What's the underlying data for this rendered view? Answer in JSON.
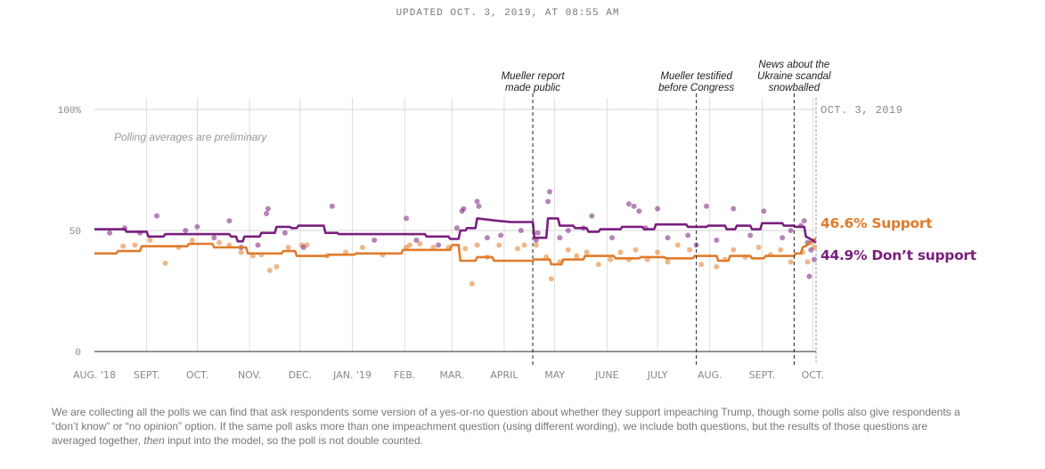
{
  "updated": "UPDATED OCT. 3, 2019, AT 08:55 AM",
  "footnote": {
    "before": "We are collecting all the polls we can find that ask respondents some version of a yes-or-no question about whether they support impeaching Trump, though some polls also give respondents a “don’t know” or “no opinion” option. If the same poll asks more than one impeachment question (using different wording), we include both questions, but the results of those questions are averaged together, ",
    "emph": "then",
    "after": " input into the model, so the poll is not double counted."
  },
  "chart_data": {
    "type": "line",
    "x_start": "2018-08-01",
    "x_end": "2019-10-03",
    "ylim": [
      0,
      100
    ],
    "y_ticks": [
      {
        "value": 0,
        "label": "0"
      },
      {
        "value": 50,
        "label": "50"
      },
      {
        "value": 100,
        "label": "100%"
      }
    ],
    "x_ticks": [
      {
        "date": "2018-08-01",
        "label": "AUG. '18"
      },
      {
        "date": "2018-09-01",
        "label": "SEPT."
      },
      {
        "date": "2018-10-01",
        "label": "OCT."
      },
      {
        "date": "2018-11-01",
        "label": "NOV."
      },
      {
        "date": "2018-12-01",
        "label": "DEC."
      },
      {
        "date": "2019-01-01",
        "label": "JAN. '19"
      },
      {
        "date": "2019-02-01",
        "label": "FEB."
      },
      {
        "date": "2019-03-01",
        "label": "MAR."
      },
      {
        "date": "2019-04-01",
        "label": "APRIL"
      },
      {
        "date": "2019-05-01",
        "label": "MAY"
      },
      {
        "date": "2019-06-01",
        "label": "JUNE"
      },
      {
        "date": "2019-07-01",
        "label": "JULY"
      },
      {
        "date": "2019-08-01",
        "label": "AUG."
      },
      {
        "date": "2019-09-01",
        "label": "SEPT."
      },
      {
        "date": "2019-10-01",
        "label": "OCT."
      }
    ],
    "grid": true,
    "subtitle": "Polling averages are preliminary",
    "end_date_label": "OCT. 3, 2019",
    "annotations": [
      {
        "date": "2019-04-18",
        "text": [
          "Mueller report",
          "made public"
        ]
      },
      {
        "date": "2019-07-24",
        "text": [
          "Mueller testified",
          "before Congress"
        ]
      },
      {
        "date": "2019-09-20",
        "text": [
          "News about the",
          "Ukraine scandal",
          "snowballed"
        ]
      }
    ],
    "series": [
      {
        "name": "Support",
        "label": "46.6% Support",
        "color": "#e07b2a",
        "line": [
          [
            "2018-08-01",
            40.5
          ],
          [
            "2018-08-14",
            40.5
          ],
          [
            "2018-08-15",
            41.5
          ],
          [
            "2018-08-28",
            41.5
          ],
          [
            "2018-08-29",
            43.5
          ],
          [
            "2018-09-25",
            43.5
          ],
          [
            "2018-09-26",
            44.5
          ],
          [
            "2018-10-10",
            44.5
          ],
          [
            "2018-10-11",
            43
          ],
          [
            "2018-10-30",
            43
          ],
          [
            "2018-10-31",
            40.5
          ],
          [
            "2018-11-20",
            40.5
          ],
          [
            "2018-11-21",
            41.5
          ],
          [
            "2018-11-28",
            41.5
          ],
          [
            "2018-11-29",
            39.5
          ],
          [
            "2018-12-17",
            39.5
          ],
          [
            "2018-12-18",
            40
          ],
          [
            "2019-01-02",
            40
          ],
          [
            "2019-01-03",
            40.5
          ],
          [
            "2019-01-30",
            40.5
          ],
          [
            "2019-01-31",
            42
          ],
          [
            "2019-02-28",
            42
          ],
          [
            "2019-03-01",
            44
          ],
          [
            "2019-03-05",
            44
          ],
          [
            "2019-03-06",
            37.5
          ],
          [
            "2019-03-15",
            37.5
          ],
          [
            "2019-03-16",
            39
          ],
          [
            "2019-03-25",
            39
          ],
          [
            "2019-03-26",
            37.5
          ],
          [
            "2019-04-18",
            37.5
          ],
          [
            "2019-04-19",
            38
          ],
          [
            "2019-04-28",
            38
          ],
          [
            "2019-04-29",
            36
          ],
          [
            "2019-05-05",
            36
          ],
          [
            "2019-05-06",
            38
          ],
          [
            "2019-05-18",
            38
          ],
          [
            "2019-05-19",
            39.5
          ],
          [
            "2019-06-05",
            39.5
          ],
          [
            "2019-06-06",
            38.5
          ],
          [
            "2019-06-20",
            38.5
          ],
          [
            "2019-06-21",
            39
          ],
          [
            "2019-07-05",
            39
          ],
          [
            "2019-07-06",
            38.5
          ],
          [
            "2019-07-22",
            38.5
          ],
          [
            "2019-07-23",
            39.5
          ],
          [
            "2019-08-05",
            39.5
          ],
          [
            "2019-08-06",
            37.5
          ],
          [
            "2019-08-12",
            37.5
          ],
          [
            "2019-08-13",
            39.5
          ],
          [
            "2019-08-25",
            39.5
          ],
          [
            "2019-08-26",
            38.5
          ],
          [
            "2019-09-02",
            38.5
          ],
          [
            "2019-09-03",
            39.5
          ],
          [
            "2019-09-20",
            39.5
          ],
          [
            "2019-09-21",
            40.5
          ],
          [
            "2019-09-24",
            40.5
          ],
          [
            "2019-09-25",
            43
          ],
          [
            "2019-09-28",
            44
          ],
          [
            "2019-10-01",
            46
          ],
          [
            "2019-10-03",
            46.6
          ]
        ],
        "polls": [
          [
            "2018-08-18",
            43.5
          ],
          [
            "2018-08-25",
            44
          ],
          [
            "2018-09-03",
            46
          ],
          [
            "2018-09-12",
            36.5
          ],
          [
            "2018-09-20",
            43
          ],
          [
            "2018-09-28",
            46
          ],
          [
            "2018-10-14",
            45
          ],
          [
            "2018-10-20",
            44
          ],
          [
            "2018-10-27",
            41
          ],
          [
            "2018-11-03",
            39.5
          ],
          [
            "2018-11-08",
            40
          ],
          [
            "2018-11-13",
            33.5
          ],
          [
            "2018-11-17",
            35
          ],
          [
            "2018-11-24",
            43
          ],
          [
            "2018-12-02",
            44
          ],
          [
            "2018-12-05",
            44
          ],
          [
            "2018-12-17",
            39.5
          ],
          [
            "2018-12-28",
            41
          ],
          [
            "2019-01-07",
            43
          ],
          [
            "2019-01-19",
            40
          ],
          [
            "2019-02-02",
            43
          ],
          [
            "2019-02-04",
            44
          ],
          [
            "2019-02-10",
            44.5
          ],
          [
            "2019-02-18",
            43
          ],
          [
            "2019-02-27",
            43
          ],
          [
            "2019-03-09",
            42.5
          ],
          [
            "2019-03-13",
            28
          ],
          [
            "2019-03-16",
            44
          ],
          [
            "2019-03-22",
            39
          ],
          [
            "2019-03-29",
            44
          ],
          [
            "2019-04-09",
            42.5
          ],
          [
            "2019-04-13",
            44
          ],
          [
            "2019-04-20",
            44
          ],
          [
            "2019-04-26",
            39
          ],
          [
            "2019-04-29",
            30
          ],
          [
            "2019-05-04",
            37
          ],
          [
            "2019-05-09",
            42
          ],
          [
            "2019-05-14",
            39.5
          ],
          [
            "2019-05-20",
            41
          ],
          [
            "2019-05-27",
            36
          ],
          [
            "2019-06-03",
            38
          ],
          [
            "2019-06-09",
            41
          ],
          [
            "2019-06-14",
            38
          ],
          [
            "2019-06-18",
            42
          ],
          [
            "2019-06-25",
            38
          ],
          [
            "2019-07-01",
            41
          ],
          [
            "2019-07-07",
            37
          ],
          [
            "2019-07-13",
            44
          ],
          [
            "2019-07-20",
            42
          ],
          [
            "2019-07-27",
            36
          ],
          [
            "2019-08-05",
            35
          ],
          [
            "2019-08-10",
            38
          ],
          [
            "2019-08-15",
            42
          ],
          [
            "2019-08-22",
            39
          ],
          [
            "2019-08-30",
            43
          ],
          [
            "2019-09-06",
            40
          ],
          [
            "2019-09-12",
            42
          ],
          [
            "2019-09-18",
            37
          ],
          [
            "2019-09-25",
            41
          ],
          [
            "2019-09-28",
            37
          ],
          [
            "2019-09-30",
            45
          ],
          [
            "2019-10-02",
            43
          ]
        ]
      },
      {
        "name": "Don't support",
        "label": "44.9% Don’t support",
        "color": "#7a1f7e",
        "line": [
          [
            "2018-08-01",
            50.5
          ],
          [
            "2018-08-19",
            50.5
          ],
          [
            "2018-08-20",
            49.5
          ],
          [
            "2018-09-01",
            49.5
          ],
          [
            "2018-09-02",
            47.5
          ],
          [
            "2018-09-11",
            47.5
          ],
          [
            "2018-09-12",
            48.5
          ],
          [
            "2018-10-20",
            48.5
          ],
          [
            "2018-10-21",
            47.5
          ],
          [
            "2018-10-24",
            47.5
          ],
          [
            "2018-10-25",
            45.5
          ],
          [
            "2018-10-28",
            45.5
          ],
          [
            "2018-10-29",
            47.5
          ],
          [
            "2018-11-07",
            47.5
          ],
          [
            "2018-11-08",
            49
          ],
          [
            "2018-11-16",
            49
          ],
          [
            "2018-11-17",
            51.5
          ],
          [
            "2018-11-25",
            51.5
          ],
          [
            "2018-11-26",
            51
          ],
          [
            "2018-11-29",
            51
          ],
          [
            "2018-11-30",
            52
          ],
          [
            "2018-12-15",
            52
          ],
          [
            "2018-12-16",
            49
          ],
          [
            "2018-12-23",
            49
          ],
          [
            "2018-12-24",
            48.5
          ],
          [
            "2019-02-13",
            48.5
          ],
          [
            "2019-02-14",
            47.5
          ],
          [
            "2019-02-27",
            47.5
          ],
          [
            "2019-02-28",
            46.5
          ],
          [
            "2019-03-05",
            46.5
          ],
          [
            "2019-03-06",
            50
          ],
          [
            "2019-03-09",
            50
          ],
          [
            "2019-03-10",
            51
          ],
          [
            "2019-03-15",
            51
          ],
          [
            "2019-03-16",
            55
          ],
          [
            "2019-03-28",
            54
          ],
          [
            "2019-04-05",
            53.5
          ],
          [
            "2019-04-18",
            53.5
          ],
          [
            "2019-04-19",
            47
          ],
          [
            "2019-04-26",
            47
          ],
          [
            "2019-04-27",
            55
          ],
          [
            "2019-05-03",
            55
          ],
          [
            "2019-05-04",
            52
          ],
          [
            "2019-05-12",
            52
          ],
          [
            "2019-05-13",
            51
          ],
          [
            "2019-05-20",
            51
          ],
          [
            "2019-05-21",
            49.5
          ],
          [
            "2019-05-27",
            49.5
          ],
          [
            "2019-05-28",
            50.5
          ],
          [
            "2019-06-09",
            50.5
          ],
          [
            "2019-06-10",
            51.5
          ],
          [
            "2019-06-22",
            51.5
          ],
          [
            "2019-06-23",
            50.5
          ],
          [
            "2019-06-29",
            50.5
          ],
          [
            "2019-06-30",
            52.5
          ],
          [
            "2019-07-18",
            52.5
          ],
          [
            "2019-07-19",
            51.5
          ],
          [
            "2019-07-30",
            51.5
          ],
          [
            "2019-07-31",
            52
          ],
          [
            "2019-08-10",
            52
          ],
          [
            "2019-08-11",
            50.5
          ],
          [
            "2019-08-16",
            50.5
          ],
          [
            "2019-08-17",
            52
          ],
          [
            "2019-08-25",
            52
          ],
          [
            "2019-08-26",
            50.5
          ],
          [
            "2019-08-31",
            50.5
          ],
          [
            "2019-09-01",
            53
          ],
          [
            "2019-09-13",
            53
          ],
          [
            "2019-09-14",
            52
          ],
          [
            "2019-09-20",
            52
          ],
          [
            "2019-09-21",
            51.5
          ],
          [
            "2019-09-26",
            51.5
          ],
          [
            "2019-09-27",
            47.5
          ],
          [
            "2019-10-01",
            46
          ],
          [
            "2019-10-03",
            44.9
          ]
        ],
        "polls": [
          [
            "2018-08-10",
            49
          ],
          [
            "2018-08-19",
            51
          ],
          [
            "2018-08-28",
            49
          ],
          [
            "2018-09-07",
            56
          ],
          [
            "2018-09-24",
            50
          ],
          [
            "2018-10-01",
            51.5
          ],
          [
            "2018-10-11",
            47
          ],
          [
            "2018-10-20",
            54
          ],
          [
            "2018-10-27",
            43
          ],
          [
            "2018-11-06",
            44
          ],
          [
            "2018-11-11",
            57
          ],
          [
            "2018-11-12",
            59
          ],
          [
            "2018-11-22",
            49
          ],
          [
            "2018-12-03",
            43
          ],
          [
            "2018-12-20",
            60
          ],
          [
            "2019-01-14",
            46
          ],
          [
            "2019-02-02",
            55
          ],
          [
            "2019-02-08",
            46
          ],
          [
            "2019-02-21",
            44
          ],
          [
            "2019-03-04",
            51
          ],
          [
            "2019-03-07",
            58
          ],
          [
            "2019-03-08",
            59
          ],
          [
            "2019-03-16",
            62
          ],
          [
            "2019-03-17",
            60
          ],
          [
            "2019-03-22",
            47
          ],
          [
            "2019-03-30",
            48
          ],
          [
            "2019-04-11",
            50
          ],
          [
            "2019-04-20",
            46
          ],
          [
            "2019-04-21",
            49
          ],
          [
            "2019-04-27",
            62
          ],
          [
            "2019-04-28",
            66
          ],
          [
            "2019-05-04",
            47
          ],
          [
            "2019-05-09",
            50
          ],
          [
            "2019-05-18",
            51
          ],
          [
            "2019-05-23",
            56
          ],
          [
            "2019-06-04",
            47
          ],
          [
            "2019-06-14",
            61
          ],
          [
            "2019-06-17",
            60
          ],
          [
            "2019-06-20",
            58
          ],
          [
            "2019-06-24",
            51
          ],
          [
            "2019-07-01",
            59
          ],
          [
            "2019-07-07",
            47
          ],
          [
            "2019-07-19",
            48
          ],
          [
            "2019-07-24",
            44
          ],
          [
            "2019-07-30",
            60
          ],
          [
            "2019-08-05",
            46
          ],
          [
            "2019-08-15",
            59
          ],
          [
            "2019-08-25",
            48
          ],
          [
            "2019-09-02",
            58
          ],
          [
            "2019-09-13",
            47
          ],
          [
            "2019-09-18",
            50
          ],
          [
            "2019-09-24",
            52
          ],
          [
            "2019-09-26",
            54
          ],
          [
            "2019-09-28",
            45
          ],
          [
            "2019-09-29",
            31
          ],
          [
            "2019-09-30",
            42
          ],
          [
            "2019-10-02",
            38
          ]
        ]
      }
    ]
  }
}
